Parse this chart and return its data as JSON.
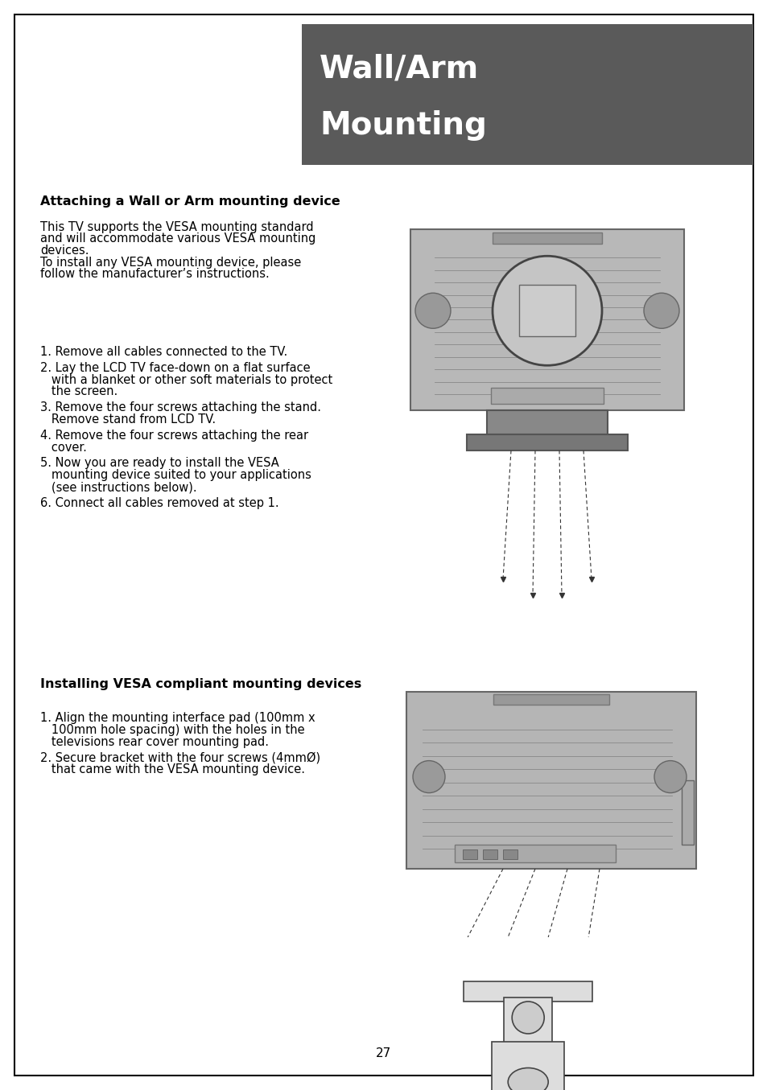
{
  "page_bg": "#ffffff",
  "border_color": "#000000",
  "header_bg": "#5a5a5a",
  "header_text_line1": "Wall/Arm",
  "header_text_line2": "Mounting",
  "header_text_color": "#ffffff",
  "section1_title": "Attaching a Wall or Arm mounting device",
  "section1_body_lines": [
    "This TV supports the VESA mounting standard",
    "and will accommodate various VESA mounting",
    "devices.",
    "To install any VESA mounting device, please",
    "follow the manufacturer’s instructions."
  ],
  "section1_steps": [
    [
      "1. Remove all cables connected to the TV."
    ],
    [
      "2. Lay the LCD TV face-down on a flat surface",
      "   with a blanket or other soft materials to protect",
      "   the screen."
    ],
    [
      "3. Remove the four screws attaching the stand.",
      "   Remove stand from LCD TV."
    ],
    [
      "4. Remove the four screws attaching the rear",
      "   cover."
    ],
    [
      "5. Now you are ready to install the VESA",
      "   mounting device suited to your applications",
      "   (see instructions below)."
    ],
    [
      "6. Connect all cables removed at step 1."
    ]
  ],
  "section2_title": "Installing VESA compliant mounting devices",
  "section2_steps": [
    [
      "1. Align the mounting interface pad (100mm x",
      "   100mm hole spacing) with the holes in the",
      "   televisions rear cover mounting pad."
    ],
    [
      "2. Secure bracket with the four screws (4mmØ)",
      "   that came with the VESA mounting device."
    ]
  ],
  "page_number": "27",
  "title_fontsize": 11.5,
  "body_fontsize": 10.5,
  "step_fontsize": 10.5,
  "header_fontsize": 28
}
